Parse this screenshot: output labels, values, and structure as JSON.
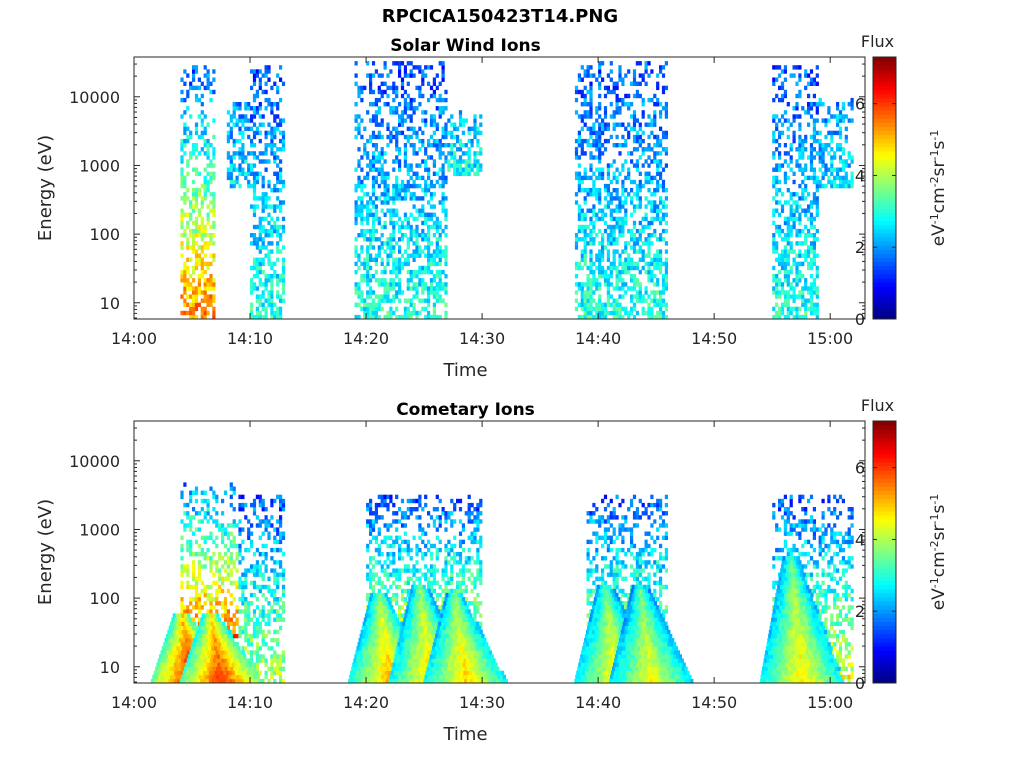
{
  "figure": {
    "title": "RPCICA150423T14.PNG"
  },
  "chart_data": [
    {
      "type": "heatmap",
      "title": "Solar Wind Ions",
      "xlabel": "Time",
      "ylabel": "Energy (eV)",
      "y_scale": "log",
      "xlim": [
        "14:00",
        "15:03"
      ],
      "ylim": [
        5.8,
        38000
      ],
      "x_ticks": [
        "14:00",
        "14:10",
        "14:20",
        "14:30",
        "14:40",
        "14:50",
        "15:00"
      ],
      "y_ticks": [
        10,
        100,
        1000,
        10000
      ],
      "y_tick_labels": [
        "10",
        "100",
        "1000",
        "10000"
      ],
      "colorbar": {
        "title": "Flux",
        "label": "eV-1cm-2sr-1s-1",
        "range": [
          0,
          7.3
        ],
        "ticks": [
          0,
          2,
          4,
          6
        ],
        "colormap": "jet"
      },
      "bursts": [
        {
          "start": "14:04",
          "end": "14:07",
          "e_min": 6,
          "e_max": 30000,
          "flux_low_energy": 5.5,
          "flux_high_energy": 1.5
        },
        {
          "start": "14:08",
          "end": "14:10",
          "e_min": 500,
          "e_max": 8000,
          "flux_low_energy": 2.5,
          "flux_high_energy": 2
        },
        {
          "start": "14:10",
          "end": "14:13",
          "e_min": 6,
          "e_max": 30000,
          "flux_low_energy": 3,
          "flux_high_energy": 1.5
        },
        {
          "start": "14:19",
          "end": "14:27",
          "e_min": 6,
          "e_max": 35000,
          "flux_low_energy": 3,
          "flux_high_energy": 1.5
        },
        {
          "start": "14:27",
          "end": "14:30",
          "e_min": 700,
          "e_max": 6000,
          "flux_low_energy": 2.8,
          "flux_high_energy": 2.2
        },
        {
          "start": "14:38",
          "end": "14:46",
          "e_min": 6,
          "e_max": 35000,
          "flux_low_energy": 3,
          "flux_high_energy": 1.5
        },
        {
          "start": "14:55",
          "end": "14:59",
          "e_min": 6,
          "e_max": 30000,
          "flux_low_energy": 3,
          "flux_high_energy": 1.5
        },
        {
          "start": "14:59",
          "end": "15:02",
          "e_min": 500,
          "e_max": 9000,
          "flux_low_energy": 2.5,
          "flux_high_energy": 2
        }
      ]
    },
    {
      "type": "heatmap",
      "title": "Cometary Ions",
      "xlabel": "Time",
      "ylabel": "Energy (eV)",
      "y_scale": "log",
      "xlim": [
        "14:00",
        "15:03"
      ],
      "ylim": [
        5.8,
        38000
      ],
      "x_ticks": [
        "14:00",
        "14:10",
        "14:20",
        "14:30",
        "14:40",
        "14:50",
        "15:00"
      ],
      "y_ticks": [
        10,
        100,
        1000,
        10000
      ],
      "y_tick_labels": [
        "10",
        "100",
        "1000",
        "10000"
      ],
      "colorbar": {
        "title": "Flux",
        "label": "eV-1cm-2sr-1s-1",
        "range": [
          0,
          7.3
        ],
        "ticks": [
          0,
          2,
          4,
          6
        ],
        "colormap": "jet"
      },
      "bursts": [
        {
          "start": "14:04",
          "end": "14:09",
          "e_min": 6,
          "e_max": 5000,
          "flux_low_energy": 6.8,
          "flux_high_energy": 1.8
        },
        {
          "start": "14:09",
          "end": "14:13",
          "e_min": 6,
          "e_max": 3000,
          "flux_low_energy": 4,
          "flux_high_energy": 1.5
        },
        {
          "start": "14:20",
          "end": "14:30",
          "e_min": 6,
          "e_max": 3000,
          "flux_low_energy": 5,
          "flux_high_energy": 1.5
        },
        {
          "start": "14:39",
          "end": "14:46",
          "e_min": 6,
          "e_max": 3000,
          "flux_low_energy": 4.5,
          "flux_high_energy": 1.5
        },
        {
          "start": "14:55",
          "end": "15:02",
          "e_min": 6,
          "e_max": 3000,
          "flux_low_energy": 4.5,
          "flux_high_energy": 1.5
        }
      ],
      "streaks": [
        {
          "time": "14:05",
          "e_top": 60,
          "flux": 6.6
        },
        {
          "time": "14:07.5",
          "e_top": 60,
          "flux": 6.2
        },
        {
          "time": "14:22",
          "e_top": 120,
          "flux": 5.2
        },
        {
          "time": "14:25.5",
          "e_top": 150,
          "flux": 5.0
        },
        {
          "time": "14:28.5",
          "e_top": 120,
          "flux": 5.0
        },
        {
          "time": "14:41.5",
          "e_top": 150,
          "flux": 4.8
        },
        {
          "time": "14:44.5",
          "e_top": 150,
          "flux": 4.6
        },
        {
          "time": "14:57.5",
          "e_top": 400,
          "flux": 4.8
        }
      ]
    }
  ]
}
